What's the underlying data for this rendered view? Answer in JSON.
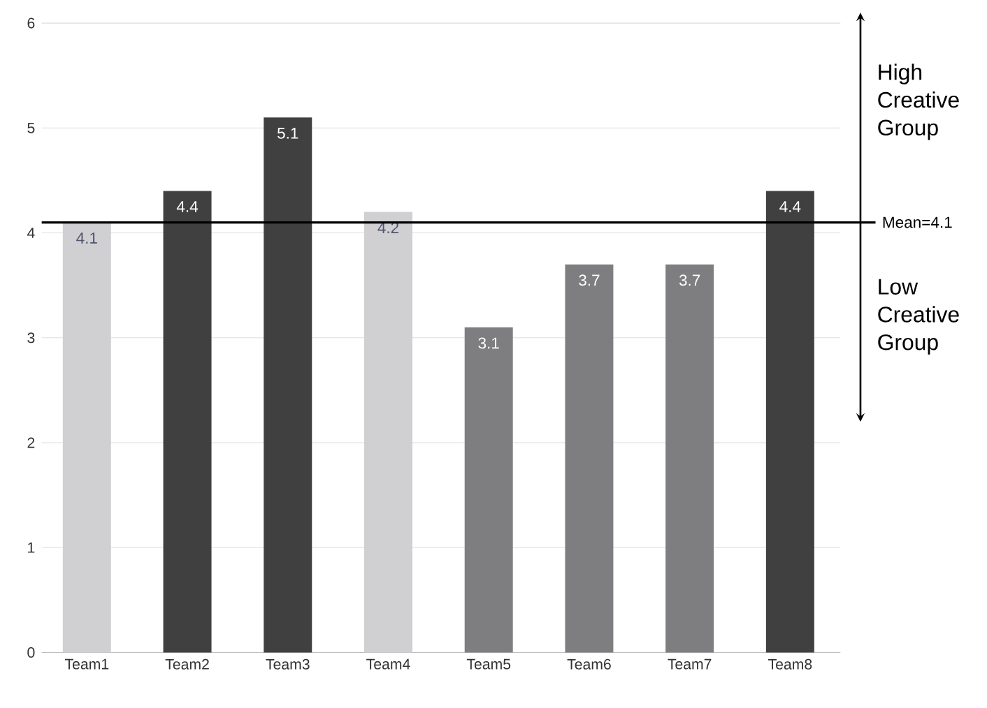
{
  "chart_data": {
    "type": "bar",
    "categories": [
      "Team1",
      "Team2",
      "Team3",
      "Team4",
      "Team5",
      "Team6",
      "Team7",
      "Team8"
    ],
    "values": [
      4.1,
      4.4,
      5.1,
      4.2,
      3.1,
      3.7,
      3.7,
      4.4
    ],
    "colors": [
      "#d0d0d2",
      "#404041",
      "#404041",
      "#d0d0d2",
      "#7e7e81",
      "#7e7e81",
      "#7e7e81",
      "#404041"
    ],
    "ylim": [
      0,
      6
    ],
    "yticks": [
      0,
      1,
      2,
      3,
      4,
      5,
      6
    ],
    "grid": "y",
    "data_labels": true,
    "ref_lines": [
      {
        "axis": "y",
        "value": 4.1,
        "label": "Mean=4.1",
        "color": "#000000"
      }
    ],
    "annotations": [
      "High Creative Group",
      "Low Creative Group"
    ]
  }
}
